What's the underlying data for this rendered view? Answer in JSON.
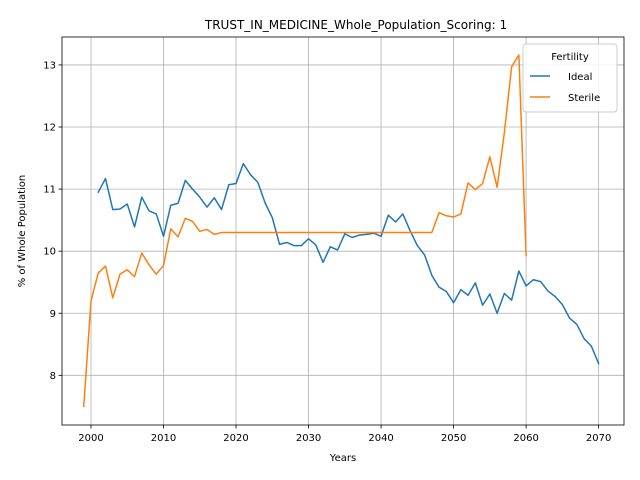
{
  "chart_data": {
    "type": "line",
    "title": "TRUST_IN_MEDICINE_Whole_Population_Scoring: 1",
    "xlabel": "Years",
    "ylabel": "% of Whole Population",
    "xlim": [
      1996,
      2073.5
    ],
    "ylim": [
      7.2,
      13.45
    ],
    "xticks": [
      2000,
      2010,
      2020,
      2030,
      2040,
      2050,
      2060,
      2070
    ],
    "yticks": [
      8,
      9,
      10,
      11,
      12,
      13
    ],
    "grid": true,
    "legend": {
      "title": "Fertility",
      "placement": "top-right"
    },
    "series": [
      {
        "name": "Ideal",
        "color": "#1f77b4",
        "points": [
          [
            2001,
            10.95
          ],
          [
            2002,
            11.17
          ],
          [
            2003,
            10.67
          ],
          [
            2004,
            10.68
          ],
          [
            2005,
            10.76
          ],
          [
            2006,
            10.39
          ],
          [
            2007,
            10.87
          ],
          [
            2008,
            10.65
          ],
          [
            2009,
            10.6
          ],
          [
            2010,
            10.24
          ],
          [
            2011,
            10.74
          ],
          [
            2012,
            10.77
          ],
          [
            2013,
            11.14
          ],
          [
            2014,
            11.0
          ],
          [
            2015,
            10.87
          ],
          [
            2016,
            10.71
          ],
          [
            2017,
            10.86
          ],
          [
            2018,
            10.67
          ],
          [
            2019,
            11.07
          ],
          [
            2020,
            11.09
          ],
          [
            2021,
            11.41
          ],
          [
            2022,
            11.23
          ],
          [
            2023,
            11.11
          ],
          [
            2024,
            10.78
          ],
          [
            2025,
            10.54
          ],
          [
            2026,
            10.11
          ],
          [
            2027,
            10.14
          ],
          [
            2028,
            10.09
          ],
          [
            2029,
            10.09
          ],
          [
            2030,
            10.2
          ],
          [
            2031,
            10.1
          ],
          [
            2032,
            9.82
          ],
          [
            2033,
            10.07
          ],
          [
            2034,
            10.02
          ],
          [
            2035,
            10.28
          ],
          [
            2036,
            10.22
          ],
          [
            2037,
            10.26
          ],
          [
            2038,
            10.27
          ],
          [
            2039,
            10.29
          ],
          [
            2040,
            10.24
          ],
          [
            2041,
            10.58
          ],
          [
            2042,
            10.47
          ],
          [
            2043,
            10.6
          ],
          [
            2044,
            10.33
          ],
          [
            2045,
            10.09
          ],
          [
            2046,
            9.94
          ],
          [
            2047,
            9.61
          ],
          [
            2048,
            9.42
          ],
          [
            2049,
            9.35
          ],
          [
            2050,
            9.17
          ],
          [
            2051,
            9.38
          ],
          [
            2052,
            9.29
          ],
          [
            2053,
            9.49
          ],
          [
            2054,
            9.13
          ],
          [
            2055,
            9.31
          ],
          [
            2056,
            9.0
          ],
          [
            2057,
            9.32
          ],
          [
            2058,
            9.21
          ],
          [
            2059,
            9.68
          ],
          [
            2060,
            9.44
          ],
          [
            2061,
            9.54
          ],
          [
            2062,
            9.51
          ],
          [
            2063,
            9.36
          ],
          [
            2064,
            9.27
          ],
          [
            2065,
            9.14
          ],
          [
            2066,
            8.92
          ],
          [
            2067,
            8.82
          ],
          [
            2068,
            8.59
          ],
          [
            2069,
            8.47
          ],
          [
            2070,
            8.19
          ]
        ]
      },
      {
        "name": "Sterile",
        "color": "#ff7f0e",
        "points": [
          [
            1999,
            7.5
          ],
          [
            2000,
            9.2
          ],
          [
            2001,
            9.65
          ],
          [
            2002,
            9.76
          ],
          [
            2003,
            9.25
          ],
          [
            2004,
            9.63
          ],
          [
            2005,
            9.7
          ],
          [
            2006,
            9.59
          ],
          [
            2007,
            9.97
          ],
          [
            2008,
            9.78
          ],
          [
            2009,
            9.63
          ],
          [
            2010,
            9.77
          ],
          [
            2011,
            10.36
          ],
          [
            2012,
            10.23
          ],
          [
            2013,
            10.53
          ],
          [
            2014,
            10.48
          ],
          [
            2015,
            10.32
          ],
          [
            2016,
            10.35
          ],
          [
            2017,
            10.27
          ],
          [
            2018,
            10.3
          ],
          [
            2019,
            10.3
          ],
          [
            2020,
            10.3
          ],
          [
            2025,
            10.3
          ],
          [
            2030,
            10.3
          ],
          [
            2035,
            10.3
          ],
          [
            2040,
            10.3
          ],
          [
            2045,
            10.3
          ],
          [
            2047,
            10.3
          ],
          [
            2048,
            10.62
          ],
          [
            2049,
            10.57
          ],
          [
            2050,
            10.55
          ],
          [
            2051,
            10.6
          ],
          [
            2052,
            11.1
          ],
          [
            2053,
            10.99
          ],
          [
            2054,
            11.09
          ],
          [
            2055,
            11.52
          ],
          [
            2056,
            11.03
          ],
          [
            2057,
            11.91
          ],
          [
            2058,
            12.97
          ],
          [
            2059,
            13.16
          ],
          [
            2060,
            9.93
          ]
        ]
      }
    ]
  }
}
